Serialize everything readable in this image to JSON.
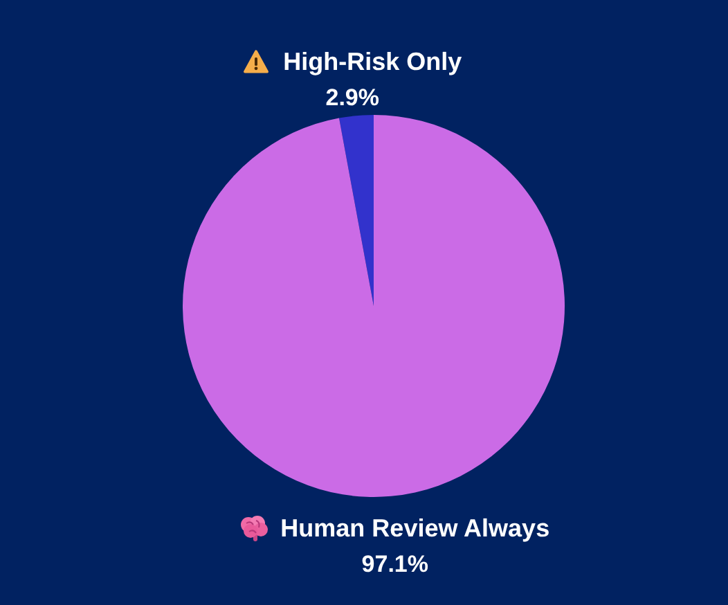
{
  "chart_data": {
    "type": "pie",
    "categories": [
      "High-Risk Only",
      "Human Review Always"
    ],
    "values": [
      2.9,
      97.1
    ],
    "colors": [
      "#3232cc",
      "#cb6be6"
    ],
    "value_labels": [
      "2.9%",
      "97.1%"
    ]
  }
}
